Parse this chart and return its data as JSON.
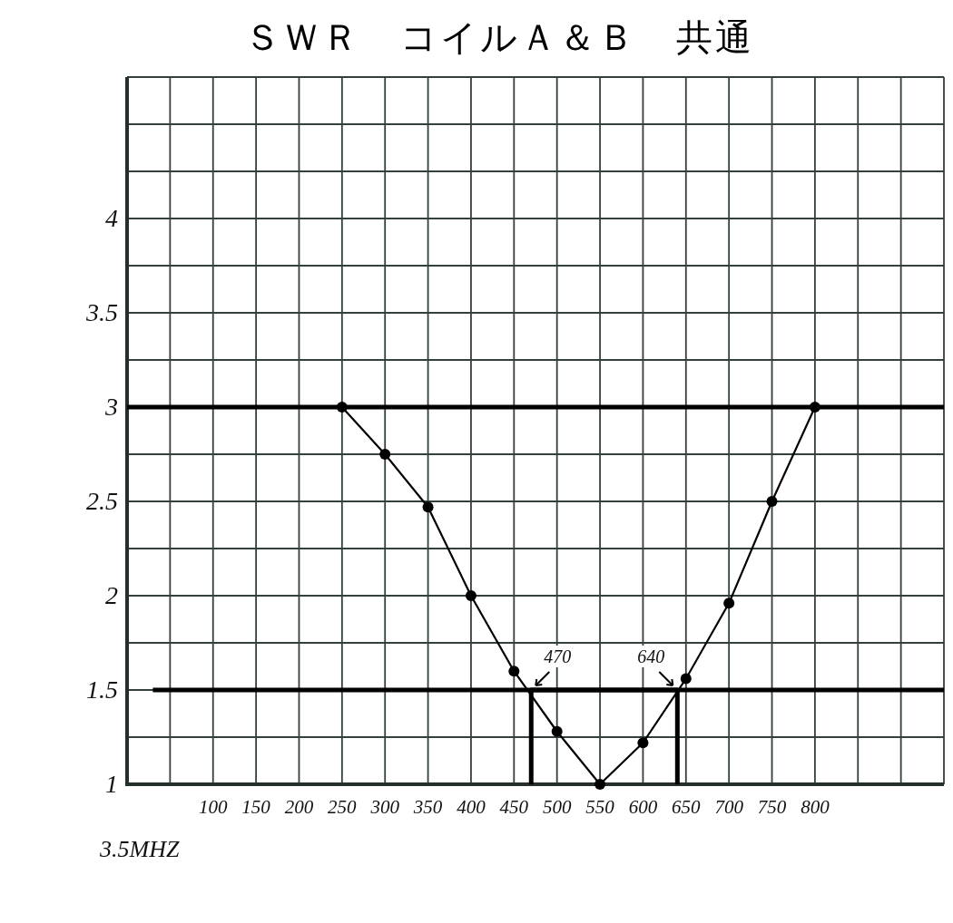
{
  "chart_data": {
    "type": "line",
    "title": "ＳＷＲ　コイルＡ＆Ｂ　共通",
    "xlabel": "3.5MHZ",
    "xlim": [
      0,
      950
    ],
    "ylim": [
      1,
      4.75
    ],
    "xticks": [
      {
        "value": 50,
        "label": null
      },
      100,
      150,
      200,
      250,
      300,
      350,
      400,
      450,
      500,
      550,
      600,
      650,
      700,
      750,
      800,
      {
        "value": 850,
        "label": null
      },
      {
        "value": 900,
        "label": null
      },
      {
        "value": 950,
        "label": null
      }
    ],
    "yticks": [
      1,
      {
        "value": 1.25,
        "label": null
      },
      1.5,
      {
        "value": 1.75,
        "label": null
      },
      2,
      {
        "value": 2.25,
        "label": null
      },
      2.5,
      {
        "value": 2.75,
        "label": null
      },
      3,
      {
        "value": 3.25,
        "label": null
      },
      3.5,
      {
        "value": 3.75,
        "label": null
      },
      4,
      {
        "value": 4.25,
        "label": null
      },
      {
        "value": 4.5,
        "label": null
      },
      {
        "value": 4.75,
        "label": null
      }
    ],
    "grid": true,
    "marker": "circle",
    "line_style": "solid",
    "series": [
      {
        "color": "#000000",
        "x": [
          250,
          300,
          350,
          400,
          450,
          500,
          550,
          600,
          650,
          700,
          750,
          800
        ],
        "values": [
          3.0,
          2.75,
          2.47,
          2.0,
          1.6,
          1.28,
          1.0,
          1.22,
          1.56,
          1.96,
          2.5,
          3.0
        ]
      },
      {
        "type": "line",
        "color": "#000000",
        "marker": "none",
        "x": [
          470,
          470,
          640,
          640
        ],
        "values": [
          1,
          1.5,
          1.5,
          1
        ]
      },
      {
        "type": "line",
        "color": "#000000",
        "marker": "none",
        "x": [
          0,
          950
        ],
        "values": [
          3,
          3
        ]
      },
      {
        "type": "line",
        "color": "#000000",
        "marker": "none",
        "x": [
          30,
          950
        ],
        "values": [
          1.5,
          1.5
        ]
      }
    ],
    "annotations": [
      {
        "text": "470",
        "x": 470,
        "y": 1.5
      },
      {
        "text": "640",
        "x": 640,
        "y": 1.5
      }
    ]
  }
}
